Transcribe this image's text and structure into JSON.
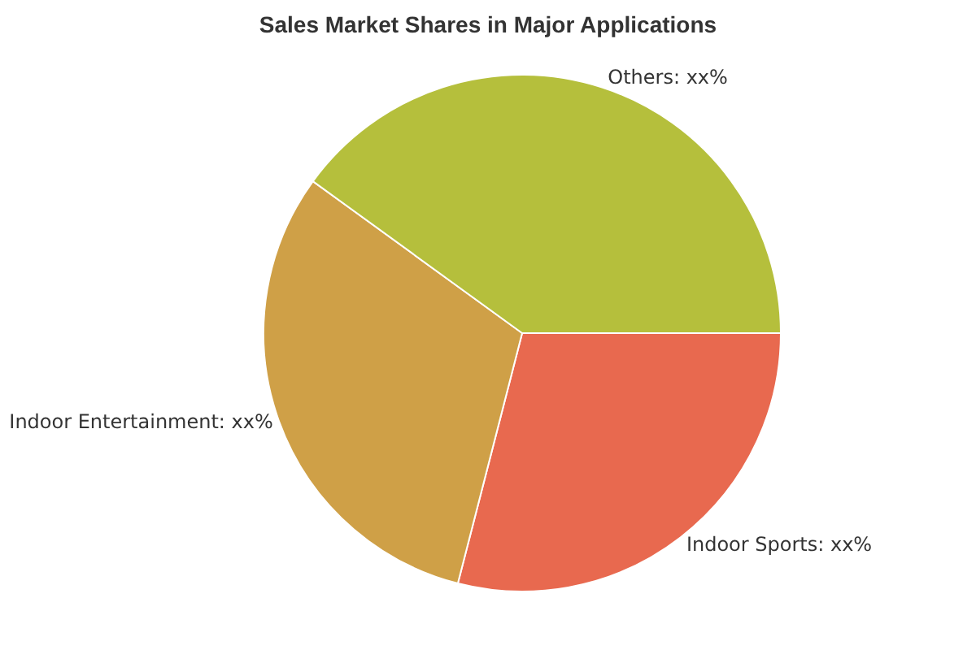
{
  "chart_data": {
    "type": "pie",
    "title": "Sales Market Shares in Major Applications",
    "categories": [
      "Indoor Sports",
      "Indoor Entertainment",
      "Others"
    ],
    "values": [
      29,
      31,
      40
    ],
    "value_labels": [
      "xx%",
      "xx%",
      "xx%"
    ],
    "colors": [
      "#e8694f",
      "#cfa047",
      "#b5bf3c"
    ],
    "legend": false
  }
}
